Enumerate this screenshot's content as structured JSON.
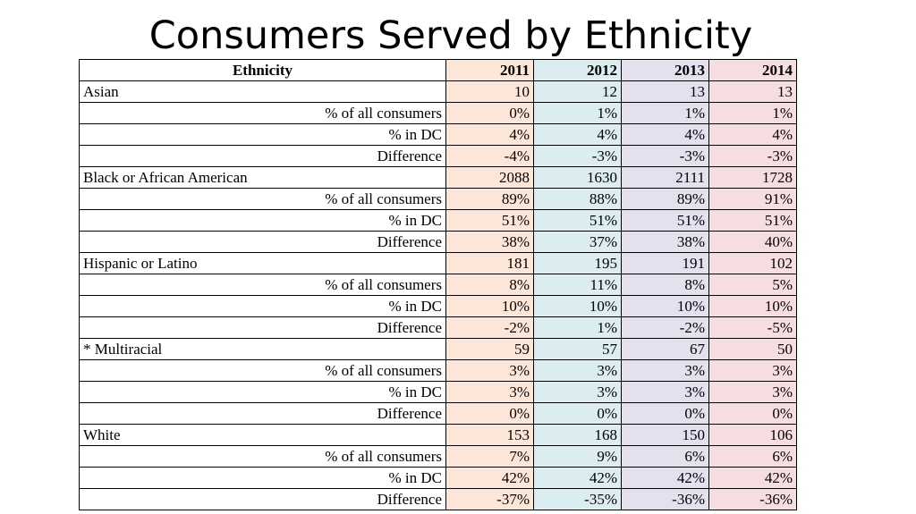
{
  "title": "Consumers Served by Ethnicity",
  "table": {
    "header_label": "Ethnicity",
    "years": [
      "2011",
      "2012",
      "2013",
      "2014"
    ],
    "colors": [
      "#fce6d8",
      "#dcedf1",
      "#e4e0ee",
      "#f6dde0"
    ],
    "groups": [
      {
        "name": "Asian",
        "count": [
          "10",
          "12",
          "13",
          "13"
        ],
        "rows": [
          {
            "label": "% of all consumers",
            "values": [
              "0%",
              "1%",
              "1%",
              "1%"
            ]
          },
          {
            "label": "% in DC",
            "values": [
              "4%",
              "4%",
              "4%",
              "4%"
            ]
          },
          {
            "label": "Difference",
            "values": [
              "-4%",
              "-3%",
              "-3%",
              "-3%"
            ]
          }
        ]
      },
      {
        "name": "Black or African American",
        "count": [
          "2088",
          "1630",
          "2111",
          "1728"
        ],
        "rows": [
          {
            "label": "% of all consumers",
            "values": [
              "89%",
              "88%",
              "89%",
              "91%"
            ]
          },
          {
            "label": "% in DC",
            "values": [
              "51%",
              "51%",
              "51%",
              "51%"
            ]
          },
          {
            "label": "Difference",
            "values": [
              "38%",
              "37%",
              "38%",
              "40%"
            ]
          }
        ]
      },
      {
        "name": "Hispanic or Latino",
        "count": [
          "181",
          "195",
          "191",
          "102"
        ],
        "rows": [
          {
            "label": "% of all consumers",
            "values": [
              "8%",
              "11%",
              "8%",
              "5%"
            ]
          },
          {
            "label": "% in DC",
            "values": [
              "10%",
              "10%",
              "10%",
              "10%"
            ]
          },
          {
            "label": "Difference",
            "values": [
              "-2%",
              "1%",
              "-2%",
              "-5%"
            ]
          }
        ]
      },
      {
        "name": "* Multiracial",
        "count": [
          "59",
          "57",
          "67",
          "50"
        ],
        "rows": [
          {
            "label": "% of all consumers",
            "values": [
              "3%",
              "3%",
              "3%",
              "3%"
            ]
          },
          {
            "label": "% in DC",
            "values": [
              "3%",
              "3%",
              "3%",
              "3%"
            ]
          },
          {
            "label": "Difference",
            "values": [
              "0%",
              "0%",
              "0%",
              "0%"
            ]
          }
        ]
      },
      {
        "name": "White",
        "count": [
          "153",
          "168",
          "150",
          "106"
        ],
        "rows": [
          {
            "label": "% of all consumers",
            "values": [
              "7%",
              "9%",
              "6%",
              "6%"
            ]
          },
          {
            "label": "% in DC",
            "values": [
              "42%",
              "42%",
              "42%",
              "42%"
            ]
          },
          {
            "label": "Difference",
            "values": [
              "-37%",
              "-35%",
              "-36%",
              "-36%"
            ]
          }
        ]
      }
    ]
  }
}
